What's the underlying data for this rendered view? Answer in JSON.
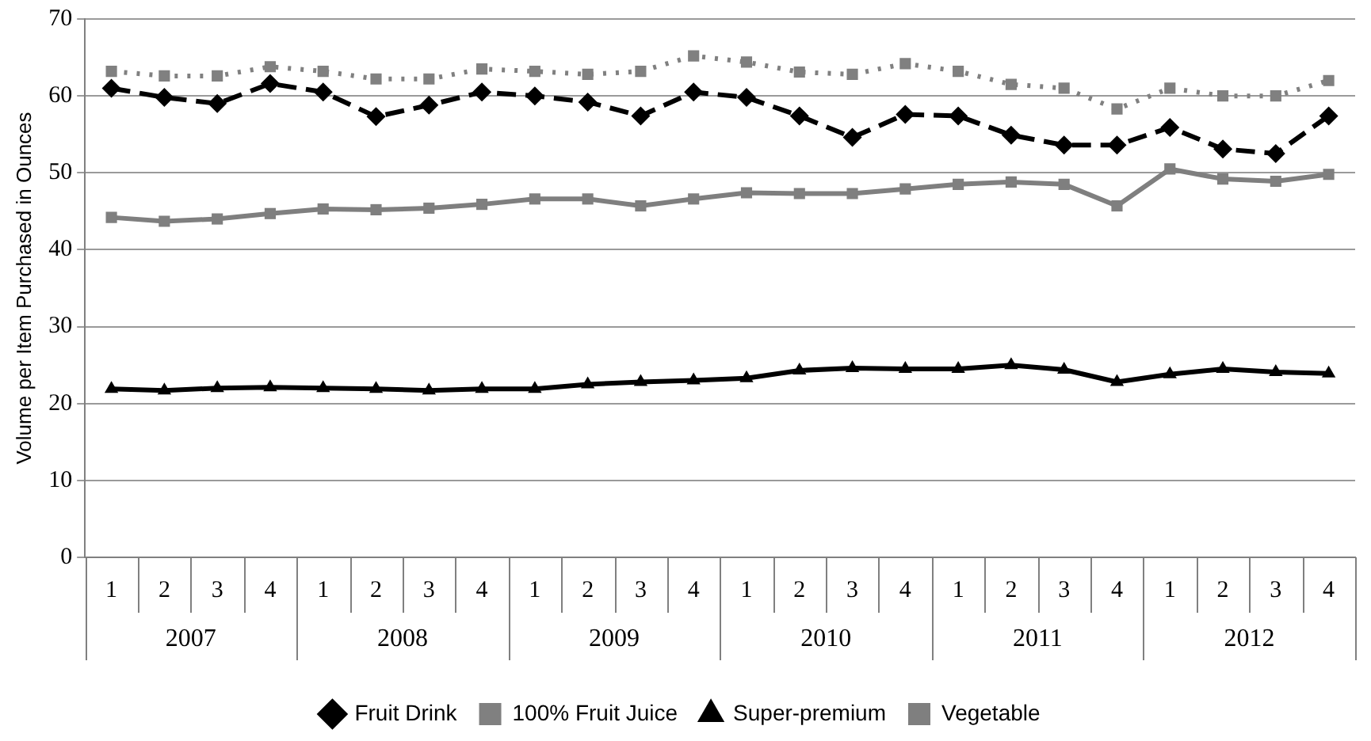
{
  "chart_data": {
    "type": "line",
    "ylabel": "Volume per Item Purchased in Ounces",
    "categories": [
      "1",
      "2",
      "3",
      "4",
      "1",
      "2",
      "3",
      "4",
      "1",
      "2",
      "3",
      "4",
      "1",
      "2",
      "3",
      "4",
      "1",
      "2",
      "3",
      "4",
      "1",
      "2",
      "3",
      "4"
    ],
    "annotations": [
      "2007",
      "2008",
      "2009",
      "2010",
      "2011",
      "2012"
    ],
    "ylim": [
      0,
      70
    ],
    "yticks": [
      0,
      10,
      20,
      30,
      40,
      50,
      60,
      70
    ],
    "grid": "y",
    "legend": "bottom",
    "series": [
      {
        "name": "Fruit Drink",
        "color": "#000000",
        "marker": "diamond",
        "line_style": "dashed",
        "values": [
          61,
          59.8,
          59,
          61.6,
          60.5,
          57.3,
          58.8,
          60.5,
          60,
          59.2,
          57.4,
          60.5,
          59.8,
          57.4,
          54.6,
          57.6,
          57.4,
          54.9,
          53.6,
          53.6,
          55.9,
          53.1,
          52.5,
          57.4
        ]
      },
      {
        "name": "100% Fruit Juice",
        "color": "#808080",
        "marker": "square",
        "line_style": "dotted",
        "values": [
          63.2,
          62.6,
          62.6,
          63.8,
          63.2,
          62.2,
          62.2,
          63.5,
          63.2,
          62.8,
          63.2,
          65.2,
          64.4,
          63.1,
          62.8,
          64.2,
          63.2,
          61.5,
          61,
          58.3,
          61,
          60,
          60,
          62
        ]
      },
      {
        "name": "Super-premium",
        "color": "#000000",
        "marker": "triangle",
        "line_style": "solid",
        "values": [
          21.9,
          21.7,
          22,
          22.1,
          22,
          21.9,
          21.7,
          21.9,
          21.9,
          22.5,
          22.8,
          23,
          23.3,
          24.3,
          24.6,
          24.5,
          24.5,
          25,
          24.4,
          22.8,
          23.8,
          24.5,
          24.1,
          23.9
        ]
      },
      {
        "name": "Vegetable",
        "color": "#7f7f7f",
        "marker": "square",
        "line_style": "solid",
        "values": [
          44.2,
          43.7,
          44,
          44.7,
          45.3,
          45.2,
          45.4,
          45.9,
          46.6,
          46.6,
          45.7,
          46.6,
          47.4,
          47.3,
          47.3,
          47.9,
          48.5,
          48.8,
          48.5,
          45.7,
          50.5,
          49.2,
          48.9,
          49.8
        ]
      }
    ]
  }
}
